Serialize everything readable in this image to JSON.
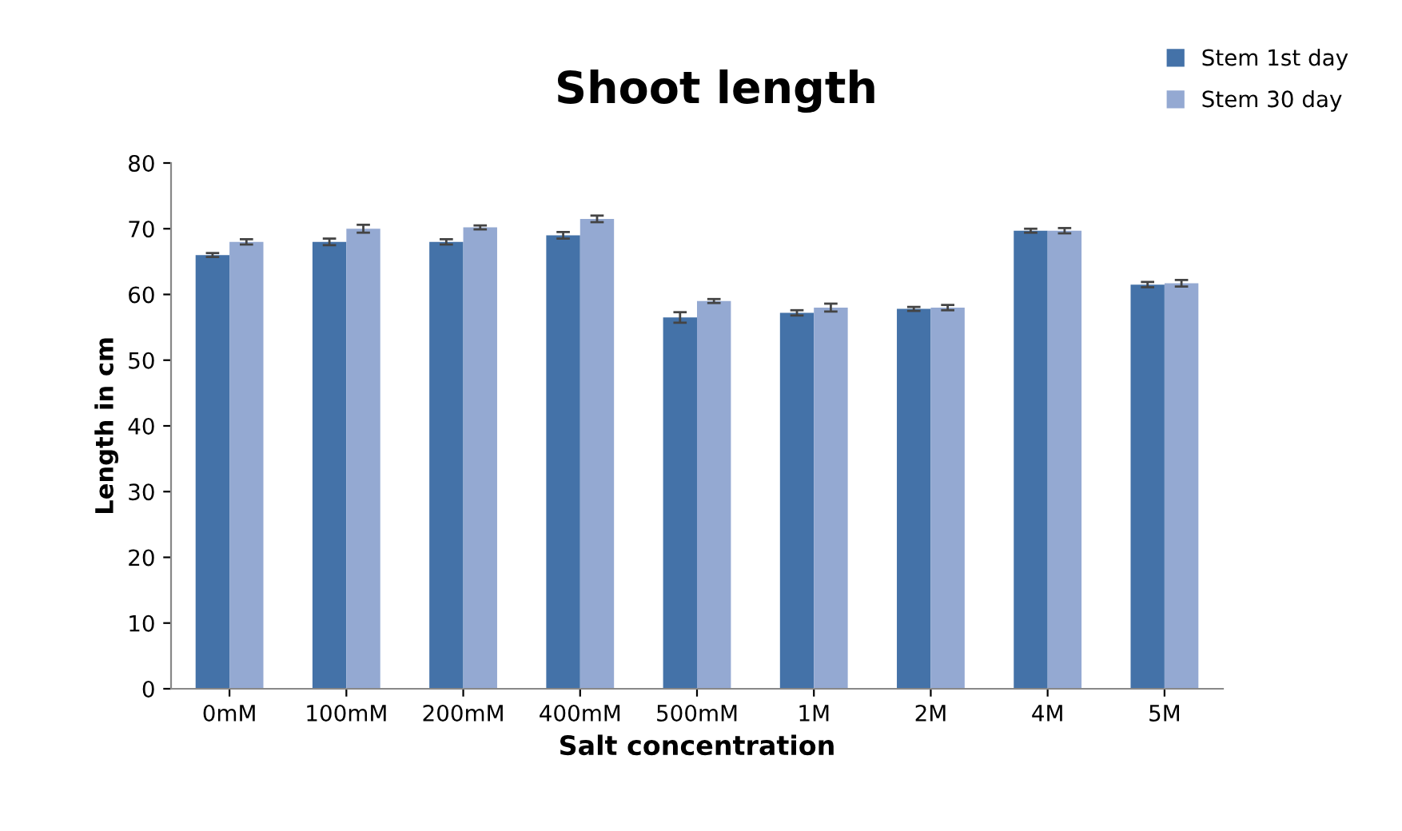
{
  "chart_data": {
    "type": "bar",
    "title": "Shoot length",
    "xlabel": "Salt concentration",
    "ylabel": "Length in cm",
    "categories": [
      "0mM",
      "100mM",
      "200mM",
      "400mM",
      "500mM",
      "1M",
      "2M",
      "4M",
      "5M"
    ],
    "series": [
      {
        "name": "Stem 1st day",
        "color": "#4472a8",
        "values": [
          66,
          68,
          68,
          69,
          56.5,
          57.2,
          57.8,
          69.7,
          61.5
        ],
        "errors": [
          0.3,
          0.5,
          0.4,
          0.5,
          0.8,
          0.4,
          0.3,
          0.3,
          0.4
        ]
      },
      {
        "name": "Stem 30 day",
        "color": "#94a9d2",
        "values": [
          68,
          70,
          70.2,
          71.5,
          59,
          58,
          58,
          69.7,
          61.7
        ],
        "errors": [
          0.4,
          0.6,
          0.3,
          0.5,
          0.3,
          0.6,
          0.4,
          0.4,
          0.5
        ]
      }
    ],
    "ylim": [
      0,
      80
    ],
    "yticks": [
      0,
      10,
      20,
      30,
      40,
      50,
      60,
      70,
      80
    ],
    "grid": false,
    "legend": "top right"
  }
}
